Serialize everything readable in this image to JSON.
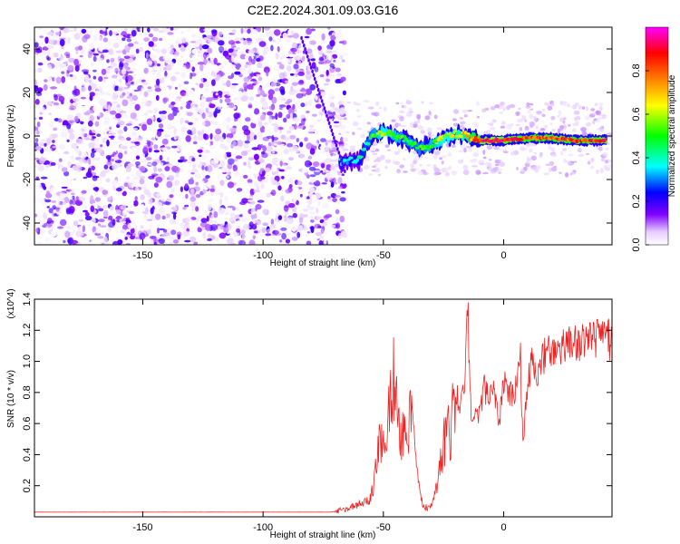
{
  "figure_title": "C2E2.2024.301.09.03.G16",
  "chart_data": [
    {
      "type": "heatmap",
      "description_source": "spectrogram",
      "xlabel": "Height of straight line (km)",
      "ylabel": "Frequency (Hz)",
      "xlim": [
        -195,
        45
      ],
      "ylim": [
        -50,
        50
      ],
      "xticks": [
        -150,
        -100,
        -50,
        0
      ],
      "yticks": [
        -40,
        -20,
        0,
        20,
        40
      ],
      "colorbar": {
        "label": "Normalized spectral amplitude",
        "range": [
          0,
          1
        ],
        "ticks": [
          "0.0",
          "0.2",
          "0.4",
          "0.6",
          "0.8"
        ],
        "colormap": [
          "#ffffff",
          "#8000ff",
          "#0000ff",
          "#00ffff",
          "#00ff00",
          "#ffff00",
          "#ff8000",
          "#ff0000",
          "#ff00ff"
        ]
      },
      "features": {
        "noise_region_x": [
          -195,
          -70
        ],
        "noise_amplitude": [
          0.0,
          0.2
        ],
        "signal_track": {
          "x": [
            -68,
            -60,
            -55,
            -50,
            -45,
            -40,
            -35,
            -30,
            -25,
            -20,
            -15,
            -10,
            -5,
            0,
            10,
            20,
            30,
            43
          ],
          "frequency": [
            -12,
            -11,
            0,
            2,
            0,
            -2,
            -6,
            -4,
            -1,
            1,
            0,
            -2,
            -2,
            -2,
            -1,
            -1,
            -2,
            -2
          ],
          "amplitude": [
            0.35,
            0.4,
            0.5,
            0.6,
            0.55,
            0.5,
            0.5,
            0.55,
            0.6,
            0.65,
            0.7,
            0.9,
            0.95,
            0.9,
            0.85,
            0.85,
            0.85,
            0.9
          ]
        }
      }
    },
    {
      "type": "line",
      "xlabel": "Height of straight line (km)",
      "ylabel": "SNR (10 * v/v)",
      "y_multiplier": "(x10^4)",
      "xlim": [
        -195,
        45
      ],
      "ylim": [
        0,
        1.4
      ],
      "xticks": [
        -150,
        -100,
        -50,
        0
      ],
      "yticks": [
        0.2,
        0.4,
        0.6,
        0.8,
        1.0,
        1.2,
        1.4
      ],
      "color": "#ee2222",
      "series": [
        {
          "x": [
            -195,
            -160,
            -120,
            -80,
            -72,
            -65,
            -60,
            -56,
            -54,
            -52,
            -50,
            -49,
            -48,
            -46,
            -44,
            -42,
            -40,
            -38,
            -36,
            -34,
            -32,
            -30,
            -28,
            -26,
            -24,
            -22,
            -20,
            -18,
            -16,
            -15,
            -14,
            -13,
            -12,
            -10,
            -8,
            -6,
            -4,
            -2,
            0,
            2,
            4,
            6,
            7,
            8,
            10,
            12,
            14,
            16,
            18,
            20,
            25,
            30,
            35,
            40,
            45
          ],
          "y": [
            0.03,
            0.03,
            0.03,
            0.03,
            0.03,
            0.05,
            0.08,
            0.1,
            0.2,
            0.45,
            0.6,
            0.45,
            0.7,
            0.92,
            0.6,
            0.55,
            0.5,
            0.7,
            0.3,
            0.1,
            0.06,
            0.08,
            0.2,
            0.35,
            0.55,
            0.55,
            0.8,
            0.72,
            0.9,
            1.4,
            0.75,
            0.6,
            0.65,
            0.68,
            0.82,
            0.78,
            0.85,
            0.6,
            0.85,
            0.82,
            0.78,
            0.95,
            1.0,
            0.45,
            0.9,
            1.0,
            0.95,
            1.02,
            1.05,
            1.05,
            1.08,
            1.12,
            1.12,
            1.14,
            1.14
          ]
        }
      ]
    }
  ]
}
